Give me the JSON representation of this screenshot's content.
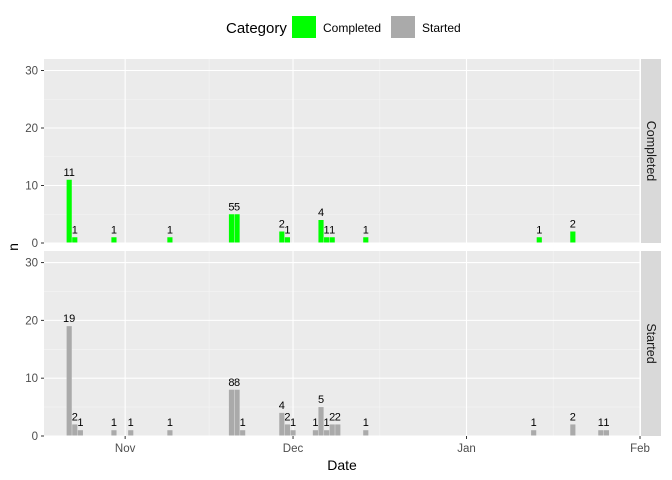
{
  "chart_data": {
    "type": "bar",
    "xlabel": "Date",
    "ylabel": "n",
    "ylim": [
      0,
      32
    ],
    "y_ticks": [
      0,
      10,
      20,
      30
    ],
    "x_ticks": [
      {
        "date": "2023-11-01",
        "label": "Nov"
      },
      {
        "date": "2023-12-01",
        "label": "Dec"
      },
      {
        "date": "2024-01-01",
        "label": "Jan"
      },
      {
        "date": "2024-02-01",
        "label": "Feb"
      }
    ],
    "x_range": [
      "2023-10-18",
      "2024-02-01"
    ],
    "legend": {
      "title": "Category",
      "position": "top"
    },
    "grid": true,
    "series": [
      {
        "name": "Completed",
        "color": "#00FF00",
        "points": [
          {
            "date": "2023-10-22",
            "value": 11
          },
          {
            "date": "2023-10-23",
            "value": 1
          },
          {
            "date": "2023-10-30",
            "value": 1
          },
          {
            "date": "2023-11-09",
            "value": 1
          },
          {
            "date": "2023-11-20",
            "value": 5
          },
          {
            "date": "2023-11-21",
            "value": 5
          },
          {
            "date": "2023-11-29",
            "value": 2
          },
          {
            "date": "2023-11-30",
            "value": 1
          },
          {
            "date": "2023-12-06",
            "value": 4
          },
          {
            "date": "2023-12-07",
            "value": 1
          },
          {
            "date": "2023-12-08",
            "value": 1
          },
          {
            "date": "2023-12-14",
            "value": 1
          },
          {
            "date": "2024-01-14",
            "value": 1
          },
          {
            "date": "2024-01-20",
            "value": 2
          }
        ]
      },
      {
        "name": "Started",
        "color": "#AAAAAA",
        "points": [
          {
            "date": "2023-10-22",
            "value": 19
          },
          {
            "date": "2023-10-23",
            "value": 2
          },
          {
            "date": "2023-10-24",
            "value": 1
          },
          {
            "date": "2023-10-30",
            "value": 1
          },
          {
            "date": "2023-11-02",
            "value": 1
          },
          {
            "date": "2023-11-09",
            "value": 1
          },
          {
            "date": "2023-11-20",
            "value": 8
          },
          {
            "date": "2023-11-21",
            "value": 8
          },
          {
            "date": "2023-11-22",
            "value": 1
          },
          {
            "date": "2023-11-29",
            "value": 4
          },
          {
            "date": "2023-11-30",
            "value": 2
          },
          {
            "date": "2023-12-01",
            "value": 1
          },
          {
            "date": "2023-12-05",
            "value": 1
          },
          {
            "date": "2023-12-06",
            "value": 5
          },
          {
            "date": "2023-12-07",
            "value": 1
          },
          {
            "date": "2023-12-08",
            "value": 2
          },
          {
            "date": "2023-12-09",
            "value": 2
          },
          {
            "date": "2023-12-14",
            "value": 1
          },
          {
            "date": "2024-01-13",
            "value": 1
          },
          {
            "date": "2024-01-20",
            "value": 2
          },
          {
            "date": "2024-01-25",
            "value": 1
          },
          {
            "date": "2024-01-26",
            "value": 1
          }
        ]
      }
    ]
  }
}
